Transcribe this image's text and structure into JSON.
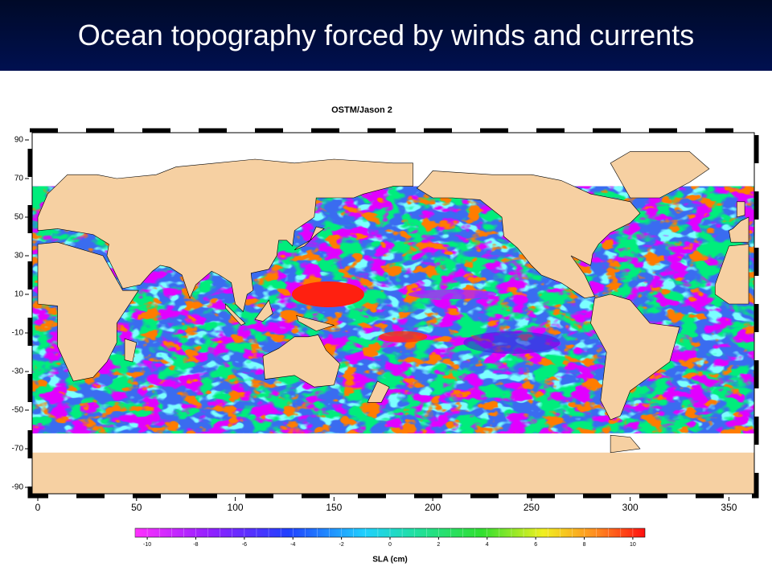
{
  "header": {
    "title": "Ocean topography forced by winds and currents"
  },
  "map": {
    "title": "OSTM/Jason 2",
    "xlim": [
      0,
      360
    ],
    "xticks": [
      0,
      50,
      100,
      150,
      200,
      250,
      300,
      350
    ],
    "ylim": [
      -90,
      90
    ],
    "yticks": [
      90,
      70,
      50,
      30,
      10,
      -10,
      -30,
      -50,
      -70,
      -90
    ],
    "colorbar": {
      "label": "SLA (cm)",
      "lim": [
        -10.5,
        10.5
      ],
      "ticks": [
        -10,
        -8,
        -6,
        -4,
        -2,
        0,
        2,
        4,
        6,
        8,
        10
      ]
    }
  }
}
